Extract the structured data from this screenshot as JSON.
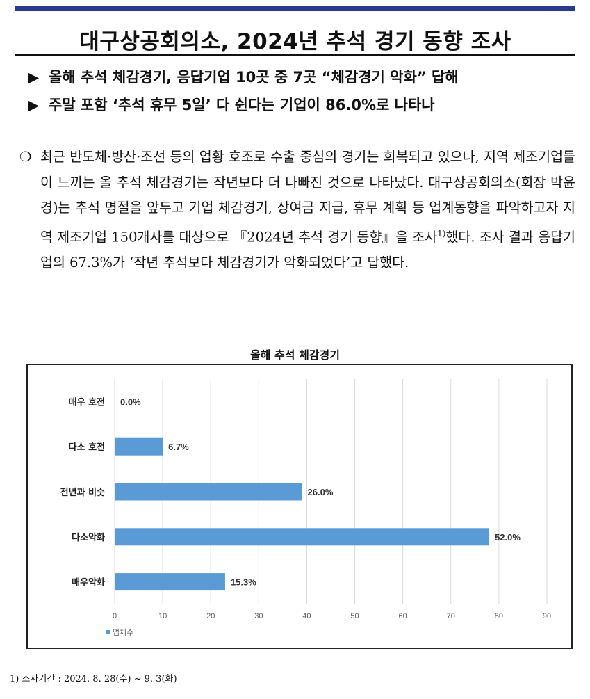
{
  "header": {
    "title": "대구상공회의소, 2024년 추석 경기 동향 조사",
    "bullets": [
      {
        "marker": "▶",
        "text": "올해 추석 체감경기, 응답기업 10곳 중 7곳 “체감경기 악화” 답해"
      },
      {
        "marker": "▶",
        "text": "주말 포함 ‘추석 휴무 5일’ 다 쉰다는 기업이 86.0%로 나타나"
      }
    ]
  },
  "body": {
    "marker": "❍",
    "paragraph_before_note": "최근 반도체·방산·조선 등의 업황 호조로 수출 중심의 경기는 회복되고 있으나, 지역 제조기업들이 느끼는 올 추석 체감경기는 작년보다 더 나빠진 것으로 나타났다. 대구상공회의소(회장 박윤경)는 추석 명절을 앞두고 기업 체감경기, 상여금 지급, 휴무 계획 등 업계동향을 파악하고자 지역 제조기업 150개사를 대상으로 『2024년 추석 경기 동향』을 조사",
    "note_ref": "1)",
    "paragraph_after_note": "했다. 조사 결과 응답기업의 67.3%가 ‘작년 추석보다 체감경기가 악화되었다’고 답했다."
  },
  "chart_data": {
    "type": "bar",
    "orientation": "horizontal",
    "title": "올해 추석 체감경기",
    "categories": [
      "매우 호전",
      "다소 호전",
      "전년과 비슷",
      "다소악화",
      "매우악화"
    ],
    "series": [
      {
        "name": "업체수",
        "values": [
          0,
          10,
          39,
          78,
          23
        ],
        "data_labels": [
          "0.0%",
          "6.7%",
          "26.0%",
          "52.0%",
          "15.3%"
        ]
      }
    ],
    "xlim": [
      0,
      90
    ],
    "x_ticks": [
      0,
      10,
      20,
      30,
      40,
      50,
      60,
      70,
      80,
      90
    ],
    "grid": true,
    "legend": "bottom-left",
    "bar_color": "#5b9bd5"
  },
  "footnote": {
    "text": "1) 조사기간 : 2024. 8. 28(수) ~ 9. 3(화)"
  }
}
